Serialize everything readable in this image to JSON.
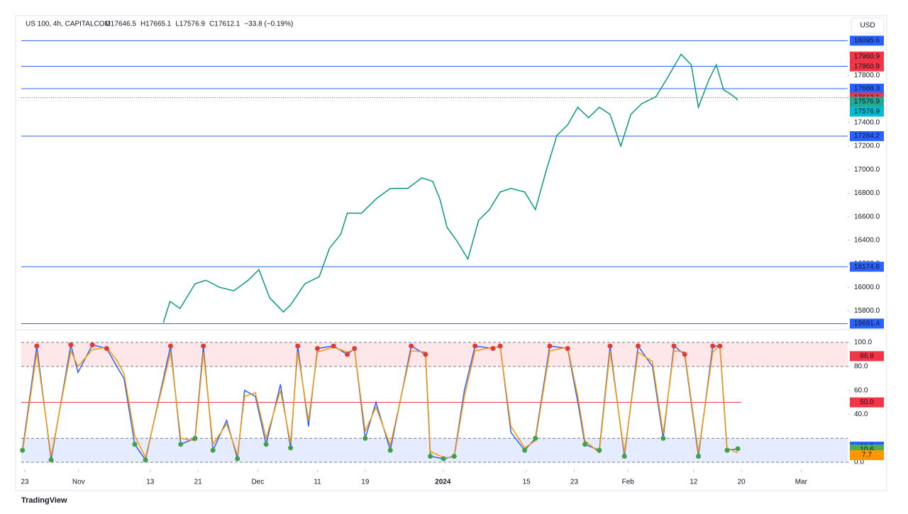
{
  "header": {
    "symbol": "US 100, 4h, CAPITALCOM",
    "ohlc": [
      "O17646.5",
      "H17665.1",
      "L17576.9",
      "C17612.1",
      "−33.8 (−0.19%)"
    ],
    "currency": "USD",
    "brand": "TradingView"
  },
  "chart_data": [
    {
      "type": "line",
      "xlim": [
        -0.6,
        137.8
      ],
      "ylim": [
        15670,
        18140
      ],
      "yticks": [
        {
          "value": 15800,
          "label": "15800.0"
        },
        {
          "value": 16000,
          "label": "16000.0"
        },
        {
          "value": 16200,
          "label": "16200.0"
        },
        {
          "value": 16400,
          "label": "16400.0"
        },
        {
          "value": 16600,
          "label": "16600.0"
        },
        {
          "value": 16800,
          "label": "16800.0"
        },
        {
          "value": 17000,
          "label": "17000.0"
        },
        {
          "value": 17200,
          "label": "17200.0"
        },
        {
          "value": 17400,
          "label": "17400.0"
        },
        {
          "value": 17600,
          "label": "17600.0"
        },
        {
          "value": 17800,
          "label": "17800.0"
        }
      ],
      "x": [
        23.2,
        24.3,
        26,
        28.5,
        30.3,
        32.6,
        35,
        37.4,
        39.2,
        41,
        43.3,
        44.5,
        46.9,
        49.3,
        51,
        52.9,
        54,
        56.4,
        58.8,
        61.2,
        64.1,
        66.5,
        68.3,
        69.5,
        70.7,
        72.4,
        74.2,
        76,
        77.8,
        79.6,
        81.4,
        83.7,
        85.5,
        87.3,
        89.1,
        90.9,
        92.6,
        94.4,
        96.2,
        98,
        99.8,
        101.5,
        103.3,
        105.7,
        107.5,
        109.9,
        111.6,
        112.8,
        114.6,
        115.8,
        117,
        118.8,
        119.4
      ],
      "series": [
        {
          "color": "#089981",
          "values": [
            15700,
            15880,
            15820,
            16030,
            16060,
            16000,
            15970,
            16060,
            16150,
            15910,
            15790,
            15850,
            16030,
            16090,
            16330,
            16450,
            16630,
            16630,
            16750,
            16840,
            16840,
            16930,
            16900,
            16750,
            16510,
            16390,
            16240,
            16570,
            16660,
            16810,
            16840,
            16810,
            16660,
            16990,
            17290,
            17380,
            17530,
            17440,
            17530,
            17470,
            17200,
            17470,
            17560,
            17620,
            17770,
            17980,
            17890,
            17530,
            17770,
            17890,
            17680,
            17620,
            17590
          ]
        }
      ],
      "levels": [
        18095.6,
        17877.9,
        17688.3,
        17284.2,
        16174.6,
        15691.4
      ],
      "level_color": "#2962ff",
      "price_labels": [
        {
          "value": 17960.9,
          "color": "#f23645"
        },
        {
          "value": 17960.9,
          "color": "#f23645"
        },
        {
          "value": 17612.1,
          "color": "#f23645"
        },
        {
          "value": 17576.9,
          "color": "#22ab94"
        },
        {
          "value": 17576.9,
          "color": "#00bcd4"
        }
      ],
      "countdown": "01:30:04"
    },
    {
      "type": "line",
      "xlim": [
        -0.6,
        137.8
      ],
      "ylim": [
        -4.7,
        107.7
      ],
      "yticks": [
        {
          "value": 0,
          "label": "0.0"
        },
        {
          "value": 40,
          "label": "40.0"
        },
        {
          "value": 60,
          "label": "60.0"
        },
        {
          "value": 80,
          "label": "80.0"
        },
        {
          "value": 100,
          "label": "100.0"
        }
      ],
      "xticks": [
        {
          "value": 0,
          "label": "23"
        },
        {
          "value": 9,
          "label": "Nov"
        },
        {
          "value": 21,
          "label": "13"
        },
        {
          "value": 29,
          "label": "21"
        },
        {
          "value": 39,
          "label": "Dec"
        },
        {
          "value": 49,
          "label": "11"
        },
        {
          "value": 57,
          "label": "19"
        },
        {
          "value": 70,
          "label": "2024"
        },
        {
          "value": 84,
          "label": "15"
        },
        {
          "value": 92,
          "label": "23"
        },
        {
          "value": 101,
          "label": "Feb"
        },
        {
          "value": 112,
          "label": "12"
        },
        {
          "value": 120,
          "label": "20"
        },
        {
          "value": 130,
          "label": "Mar"
        }
      ],
      "x": [
        -0.4,
        2.0,
        4.4,
        7.7,
        8.9,
        11.3,
        13.7,
        15.4,
        16.6,
        18.4,
        20.2,
        24.4,
        26.1,
        28.5,
        29.9,
        31.5,
        33.8,
        35.6,
        36.8,
        38.6,
        40.4,
        42.8,
        44.5,
        45.7,
        47.5,
        49.0,
        51.7,
        54.0,
        55.2,
        57.0,
        58.8,
        61.2,
        64.7,
        67.1,
        67.9,
        70.1,
        71.9,
        73.6,
        75.4,
        78.4,
        79.6,
        81.4,
        83.7,
        85.5,
        87.9,
        90.9,
        92.6,
        93.8,
        96.2,
        98.0,
        100.4,
        102.7,
        105.1,
        106.9,
        108.7,
        110.5,
        112.8,
        115.2,
        116.4,
        117.6,
        119.4
      ],
      "series": [
        {
          "color": "#2962ff",
          "values": [
            10,
            97,
            2,
            98,
            75,
            98,
            95,
            80,
            70,
            15,
            2,
            97,
            15,
            20,
            97,
            10,
            35,
            3,
            60,
            55,
            15,
            65,
            12,
            97,
            30,
            95,
            97,
            90,
            95,
            20,
            50,
            10,
            97,
            90,
            5,
            3,
            5,
            60,
            97,
            95,
            97,
            25,
            10,
            20,
            97,
            95,
            50,
            15,
            10,
            97,
            5,
            97,
            80,
            20,
            97,
            90,
            5,
            97,
            97,
            10,
            11.3
          ]
        },
        {
          "color": "#ff9800",
          "values": [
            8,
            92,
            5,
            93,
            80,
            94,
            96,
            85,
            74,
            22,
            4,
            92,
            20,
            18,
            92,
            15,
            32,
            6,
            55,
            58,
            20,
            60,
            16,
            92,
            35,
            92,
            96,
            92,
            94,
            26,
            46,
            14,
            93,
            92,
            9,
            4,
            4,
            55,
            93,
            96,
            96,
            30,
            12,
            18,
            93,
            96,
            55,
            18,
            8,
            93,
            8,
            92,
            84,
            24,
            93,
            92,
            8,
            92,
            98,
            12,
            7.7
          ]
        }
      ],
      "levels": [
        {
          "value": 50,
          "label": "50.0"
        }
      ],
      "bands": [
        {
          "from": 80,
          "to": 100,
          "color": "#f23645"
        },
        {
          "from": 0,
          "to": 20,
          "color": "#2962ff"
        }
      ],
      "value_labels_right": [
        {
          "value": 86.8,
          "color": "#f23645"
        },
        {
          "value": 11.3,
          "color": "#2962ff"
        },
        {
          "value": 10.6,
          "color": "#4caf50"
        },
        {
          "value": 7.7,
          "color": "#ff9800"
        }
      ]
    }
  ]
}
